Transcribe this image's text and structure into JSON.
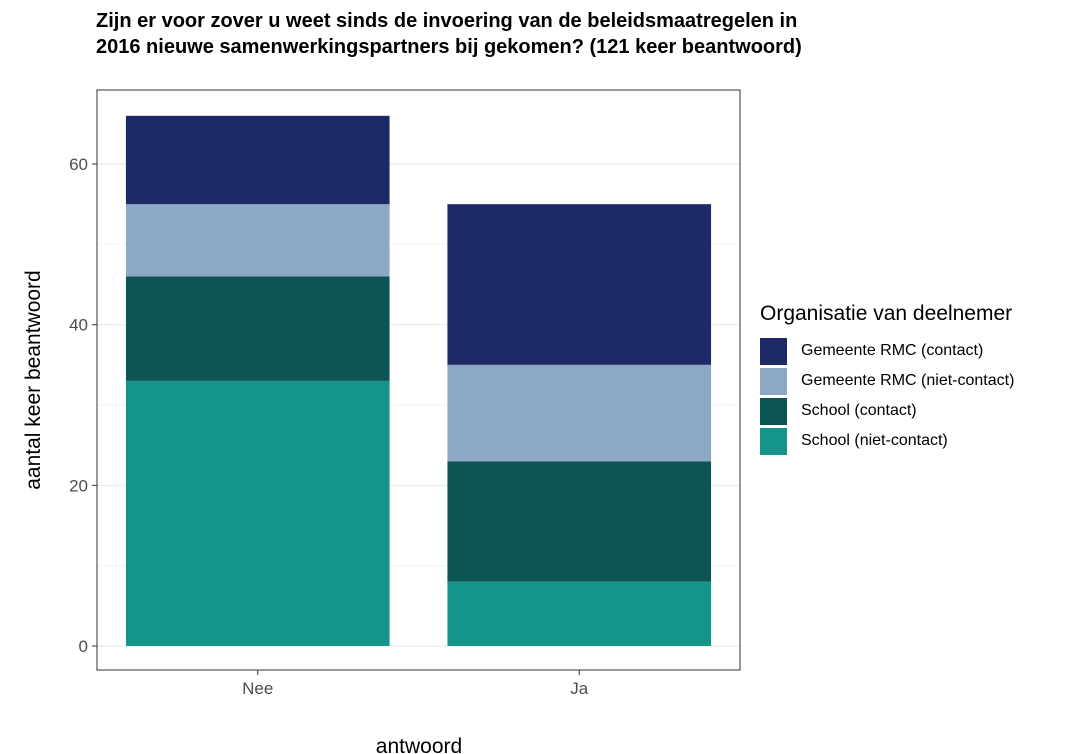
{
  "chart_data": {
    "type": "bar",
    "stacked": true,
    "title_lines": [
      "Zijn er voor zover u weet sinds de invoering van de beleidsmaatregelen in",
      "2016 nieuwe samenwerkingspartners bij gekomen? (121 keer beantwoord)"
    ],
    "xlabel": "antwoord",
    "ylabel": "aantal keer beantwoord",
    "categories": [
      "Nee",
      "Ja"
    ],
    "ylim": [
      0,
      69
    ],
    "yticks": [
      0,
      20,
      40,
      60
    ],
    "grid": true,
    "legend_title": "Organisatie van deelnemer",
    "legend_position": "right",
    "series": [
      {
        "name": "School (niet-contact)",
        "color": "#15958A",
        "values": [
          33,
          8
        ]
      },
      {
        "name": "School (contact)",
        "color": "#0D5554",
        "values": [
          13,
          15
        ]
      },
      {
        "name": "Gemeente RMC (niet-contact)",
        "color": "#8CA8C4",
        "values": [
          9,
          12
        ]
      },
      {
        "name": "Gemeente RMC (contact)",
        "color": "#1D2A65",
        "values": [
          11,
          20
        ]
      }
    ],
    "legend_order": [
      3,
      2,
      1,
      0
    ]
  }
}
